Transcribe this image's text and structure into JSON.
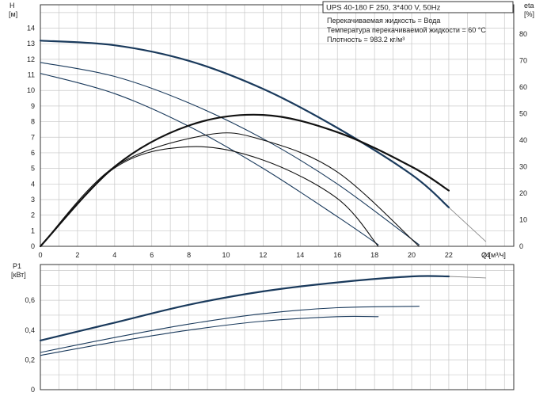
{
  "chart_data": [
    {
      "type": "line",
      "title": "UPS 40-180 F 250, 3*400 V, 50Hz",
      "info_lines": [
        "Перекачиваемая жидкость = Вода",
        "Температура перекачиваемой жидкости = 60 °C",
        "Плотность = 983.2 кг/м³"
      ],
      "x_axis": {
        "label": "Q [м³/ч]",
        "range": [
          0,
          25.5
        ],
        "ticks": [
          "0",
          "2",
          "4",
          "6",
          "8",
          "10",
          "12",
          "14",
          "16",
          "18",
          "20",
          "22",
          "24"
        ]
      },
      "y_axis_left": {
        "label_line1": "H",
        "label_line2": "[м]",
        "range": [
          0,
          15.5
        ],
        "ticks": [
          "0",
          "1",
          "2",
          "3",
          "4",
          "5",
          "6",
          "7",
          "8",
          "9",
          "10",
          "11",
          "12",
          "13",
          "14"
        ]
      },
      "y_axis_right": {
        "label_line1": "eta",
        "label_line2": "[%]",
        "range": [
          0,
          91
        ],
        "ticks": [
          "0",
          "10",
          "20",
          "30",
          "40",
          "50",
          "60",
          "70",
          "80"
        ]
      },
      "grid": true,
      "series": [
        {
          "kind": "head",
          "style": "bold",
          "x": [
            0,
            4,
            8,
            12,
            16,
            20,
            22
          ],
          "y": [
            13.2,
            12.9,
            11.9,
            10.1,
            7.6,
            4.6,
            2.5
          ],
          "ext_x": [
            22,
            24
          ],
          "ext_y": [
            2.5,
            0.3
          ]
        },
        {
          "kind": "head",
          "style": "thin",
          "x": [
            0,
            4,
            8,
            12,
            16,
            20.4
          ],
          "y": [
            11.8,
            10.9,
            9.2,
            6.9,
            4.0,
            0.1
          ]
        },
        {
          "kind": "head",
          "style": "thin",
          "x": [
            0,
            4,
            8,
            12,
            16,
            18.2
          ],
          "y": [
            11.1,
            9.8,
            7.7,
            5.0,
            1.9,
            0.1
          ]
        },
        {
          "kind": "eta",
          "style": "bold",
          "x": [
            0,
            4,
            8,
            12,
            16,
            20,
            22
          ],
          "y": [
            0,
            30,
            45.5,
            49.5,
            43,
            30,
            21
          ]
        },
        {
          "kind": "eta",
          "style": "thin",
          "x": [
            0,
            4,
            9,
            12,
            16,
            20.4
          ],
          "y": [
            0,
            30,
            42,
            40,
            28,
            0
          ]
        },
        {
          "kind": "eta",
          "style": "thin",
          "x": [
            0,
            4,
            8,
            12,
            16,
            18.2
          ],
          "y": [
            0,
            29.5,
            37.5,
            32.5,
            18,
            0
          ]
        }
      ]
    },
    {
      "type": "line",
      "x_axis": {
        "range": [
          0,
          25.5
        ]
      },
      "y_axis_left": {
        "label_line1": "P1",
        "label_line2": "[кВт]",
        "range": [
          0,
          0.84
        ],
        "ticks": [
          "0",
          "0,2",
          "0,4",
          "0,6"
        ]
      },
      "grid": true,
      "series": [
        {
          "style": "bold",
          "x": [
            0,
            4,
            8,
            12,
            16,
            20,
            22
          ],
          "y": [
            0.33,
            0.45,
            0.57,
            0.66,
            0.72,
            0.76,
            0.76
          ],
          "ext_x": [
            22,
            24
          ],
          "ext_y": [
            0.76,
            0.75
          ]
        },
        {
          "style": "thin",
          "x": [
            0,
            4,
            8,
            12,
            16,
            20.4
          ],
          "y": [
            0.25,
            0.35,
            0.44,
            0.51,
            0.55,
            0.56
          ]
        },
        {
          "style": "thin",
          "x": [
            0,
            4,
            8,
            12,
            16,
            18.2
          ],
          "y": [
            0.23,
            0.32,
            0.4,
            0.46,
            0.49,
            0.49
          ]
        }
      ]
    }
  ],
  "colors": {
    "curve": "#1a3a5c",
    "eta_curve": "#111111",
    "grid": "#c8c8c8",
    "extension": "#888888",
    "axis": "#333333"
  }
}
